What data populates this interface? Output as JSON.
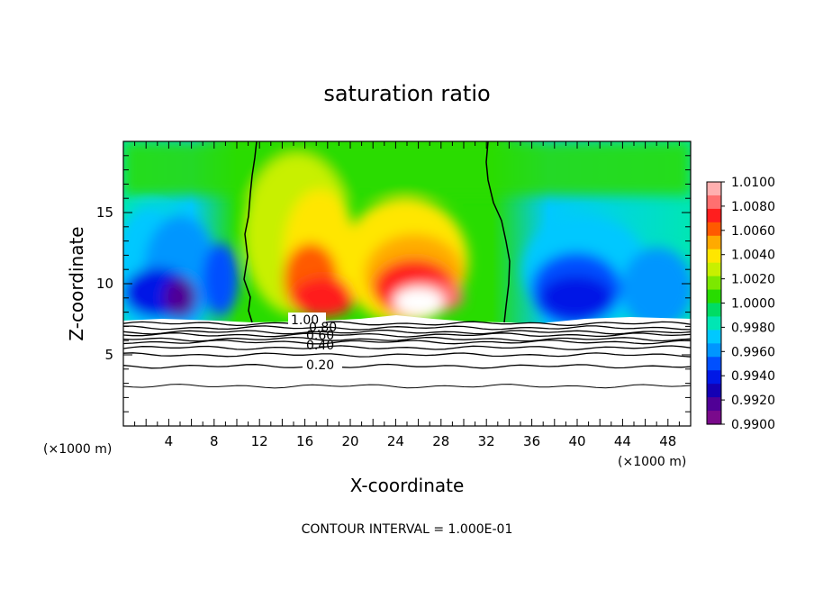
{
  "chart_data": {
    "type": "heatmap",
    "title": "saturation ratio",
    "xlabel": "X-coordinate",
    "ylabel": "Z-coordinate",
    "x_unit": "(×1000 m)",
    "z_unit": "(×1000 m)",
    "note": "CONTOUR INTERVAL = 1.000E-01",
    "xlim": [
      0,
      50
    ],
    "ylim": [
      0,
      20
    ],
    "x_ticks": [
      "4",
      "8",
      "12",
      "16",
      "20",
      "24",
      "28",
      "32",
      "36",
      "40",
      "44",
      "48"
    ],
    "y_ticks": [
      "5",
      "10",
      "15"
    ],
    "colorbar": {
      "labels": [
        "1.0100",
        "1.0080",
        "1.0060",
        "1.0040",
        "1.0020",
        "1.0000",
        "0.9980",
        "0.9960",
        "0.9940",
        "0.9920",
        "0.9900"
      ],
      "colors": [
        "#ffb0b0",
        "#ff7070",
        "#ff1e1e",
        "#ff5a00",
        "#ffaa00",
        "#ffe600",
        "#c8f000",
        "#7ce800",
        "#28dc00",
        "#00dc64",
        "#00e6b4",
        "#00c8ff",
        "#0096ff",
        "#0050ff",
        "#0018e6",
        "#1400b4",
        "#500096",
        "#7a0a8c"
      ]
    },
    "contour_labels": [
      "1.00",
      "0.80",
      "0.60",
      "0.40",
      "0.20"
    ],
    "contour_levels_z": [
      {
        "level": "1.00",
        "z": 7.2
      },
      {
        "level": "0.80",
        "z": 6.8
      },
      {
        "level": "0.60",
        "z": 6.4
      },
      {
        "level": "0.40",
        "z": 5.9
      },
      {
        "level": "0.20",
        "z": 4.2
      }
    ]
  }
}
